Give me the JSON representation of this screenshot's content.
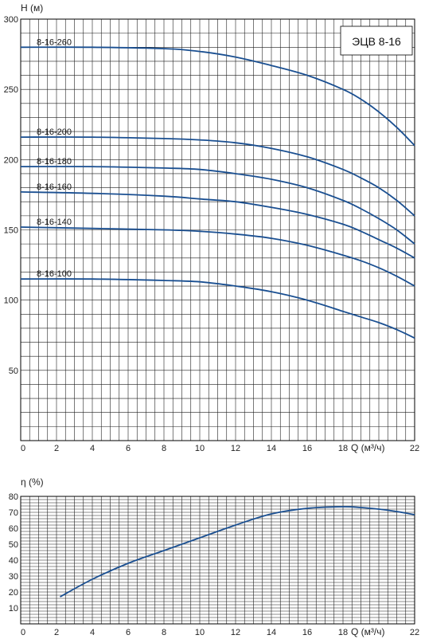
{
  "chart_data": [
    {
      "type": "line",
      "title": "ЭЦВ 8-16",
      "ylabel": "H (м)",
      "xlabel": "Q (м³/ч)",
      "xlim": [
        0,
        22
      ],
      "ylim": [
        0,
        300
      ],
      "x_ticks": [
        "0",
        "2",
        "4",
        "6",
        "8",
        "10",
        "12",
        "14",
        "16",
        "18",
        "22"
      ],
      "y_ticks": [
        "50",
        "100",
        "150",
        "200",
        "250",
        "300"
      ],
      "grid": true,
      "color": "#1a4f91",
      "series": [
        {
          "name": "8-16-260",
          "x": [
            0,
            4,
            8,
            10,
            12,
            14,
            16,
            18,
            19,
            20,
            21,
            22
          ],
          "y": [
            280,
            280,
            279,
            277,
            273,
            267,
            260,
            250,
            243,
            234,
            223,
            210
          ]
        },
        {
          "name": "8-16-200",
          "x": [
            0,
            4,
            8,
            10,
            12,
            14,
            16,
            18,
            19,
            20,
            21,
            22
          ],
          "y": [
            216,
            216,
            215,
            214,
            212,
            208,
            202,
            193,
            187,
            180,
            171,
            160
          ]
        },
        {
          "name": "8-16-180",
          "x": [
            0,
            4,
            8,
            10,
            12,
            14,
            16,
            18,
            19,
            20,
            21,
            22
          ],
          "y": [
            195,
            195,
            194,
            193,
            190,
            186,
            180,
            171,
            165,
            158,
            150,
            140
          ]
        },
        {
          "name": "8-16-160",
          "x": [
            0,
            4,
            8,
            10,
            12,
            14,
            16,
            18,
            19,
            20,
            21,
            22
          ],
          "y": [
            177,
            176,
            174,
            172,
            170,
            166,
            161,
            154,
            149,
            143,
            137,
            130
          ]
        },
        {
          "name": "8-16-140",
          "x": [
            0,
            4,
            8,
            10,
            12,
            14,
            16,
            18,
            19,
            20,
            21,
            22
          ],
          "y": [
            152,
            151,
            150,
            149,
            147,
            144,
            139,
            132,
            128,
            123,
            117,
            110
          ]
        },
        {
          "name": "8-16-100",
          "x": [
            0,
            4,
            8,
            10,
            12,
            14,
            16,
            18,
            19,
            20,
            21,
            22
          ],
          "y": [
            115,
            115,
            114,
            113,
            110,
            106,
            100,
            92,
            88,
            84,
            79,
            73
          ]
        }
      ]
    },
    {
      "type": "line",
      "title": "",
      "ylabel": "η (%)",
      "xlabel": "Q (м³/ч)",
      "xlim": [
        0,
        22
      ],
      "ylim": [
        0,
        80
      ],
      "x_ticks": [
        "0",
        "2",
        "4",
        "6",
        "8",
        "10",
        "12",
        "14",
        "16",
        "18",
        "22"
      ],
      "y_ticks": [
        "10",
        "20",
        "30",
        "40",
        "50",
        "60",
        "70",
        "80"
      ],
      "grid": true,
      "color": "#1a4f91",
      "series": [
        {
          "name": "",
          "x": [
            2.2,
            4,
            6,
            8,
            10,
            12,
            14,
            16,
            18,
            19,
            20,
            21,
            22
          ],
          "y": [
            17,
            28,
            38,
            46,
            54,
            62,
            69,
            72.5,
            73.5,
            73,
            72,
            70.5,
            68.5
          ]
        }
      ]
    }
  ]
}
